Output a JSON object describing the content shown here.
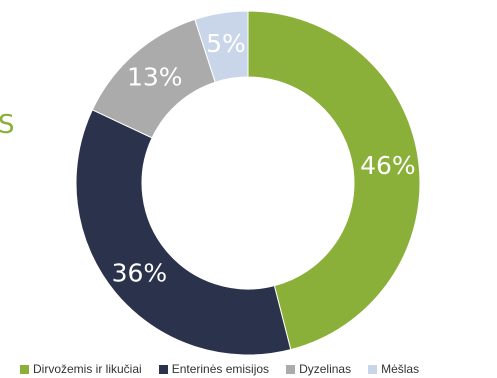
{
  "chart_data": {
    "type": "pie",
    "title": "",
    "style": "donut",
    "legend_position": "bottom",
    "categories": [
      "Dirvožemis ir likučiai",
      "Enterinės emisijos",
      "Dyzelinas",
      "Mėšlas"
    ],
    "values": [
      46,
      36,
      13,
      5
    ],
    "labels": [
      "46%",
      "36%",
      "13%",
      "5%"
    ],
    "colors": [
      "#8ab03a",
      "#2b334c",
      "#ababab",
      "#c9d6ea"
    ]
  },
  "edge_fragment": "S"
}
